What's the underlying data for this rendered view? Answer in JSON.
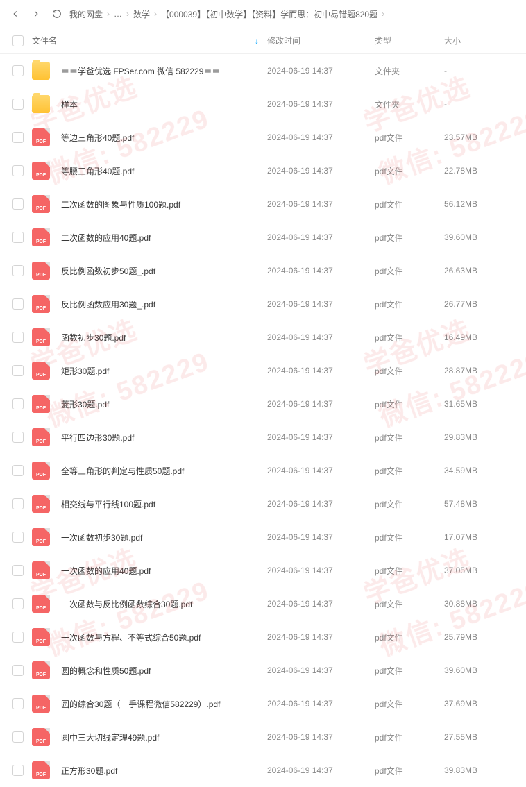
{
  "breadcrumb": {
    "items": [
      "我的网盘",
      "…",
      "数学",
      "【000039】【初中数学】【资料】学而思：初中易错题820题"
    ]
  },
  "columns": {
    "name": "文件名",
    "time": "修改时间",
    "type": "类型",
    "size": "大小"
  },
  "files": [
    {
      "name": "＝＝学爸优选 FPSer.com 微信 582229＝＝",
      "time": "2024-06-19 14:37",
      "type": "文件夹",
      "size": "-",
      "kind": "folder"
    },
    {
      "name": "样本",
      "time": "2024-06-19 14:37",
      "type": "文件夹",
      "size": "-",
      "kind": "folder"
    },
    {
      "name": "等边三角形40题.pdf",
      "time": "2024-06-19 14:37",
      "type": "pdf文件",
      "size": "23.57MB",
      "kind": "pdf"
    },
    {
      "name": "等腰三角形40题.pdf",
      "time": "2024-06-19 14:37",
      "type": "pdf文件",
      "size": "22.78MB",
      "kind": "pdf"
    },
    {
      "name": "二次函数的图象与性质100题.pdf",
      "time": "2024-06-19 14:37",
      "type": "pdf文件",
      "size": "56.12MB",
      "kind": "pdf"
    },
    {
      "name": "二次函数的应用40题.pdf",
      "time": "2024-06-19 14:37",
      "type": "pdf文件",
      "size": "39.60MB",
      "kind": "pdf"
    },
    {
      "name": "反比例函数初步50题_.pdf",
      "time": "2024-06-19 14:37",
      "type": "pdf文件",
      "size": "26.63MB",
      "kind": "pdf"
    },
    {
      "name": "反比例函数应用30题_.pdf",
      "time": "2024-06-19 14:37",
      "type": "pdf文件",
      "size": "26.77MB",
      "kind": "pdf"
    },
    {
      "name": "函数初步30题.pdf",
      "time": "2024-06-19 14:37",
      "type": "pdf文件",
      "size": "16.49MB",
      "kind": "pdf"
    },
    {
      "name": "矩形30题.pdf",
      "time": "2024-06-19 14:37",
      "type": "pdf文件",
      "size": "28.87MB",
      "kind": "pdf"
    },
    {
      "name": "菱形30题.pdf",
      "time": "2024-06-19 14:37",
      "type": "pdf文件",
      "size": "31.65MB",
      "kind": "pdf"
    },
    {
      "name": "平行四边形30题.pdf",
      "time": "2024-06-19 14:37",
      "type": "pdf文件",
      "size": "29.83MB",
      "kind": "pdf"
    },
    {
      "name": "全等三角形的判定与性质50题.pdf",
      "time": "2024-06-19 14:37",
      "type": "pdf文件",
      "size": "34.59MB",
      "kind": "pdf"
    },
    {
      "name": "相交线与平行线100题.pdf",
      "time": "2024-06-19 14:37",
      "type": "pdf文件",
      "size": "57.48MB",
      "kind": "pdf"
    },
    {
      "name": "一次函数初步30题.pdf",
      "time": "2024-06-19 14:37",
      "type": "pdf文件",
      "size": "17.07MB",
      "kind": "pdf"
    },
    {
      "name": "一次函数的应用40题.pdf",
      "time": "2024-06-19 14:37",
      "type": "pdf文件",
      "size": "37.05MB",
      "kind": "pdf"
    },
    {
      "name": "一次函数与反比例函数综合30题.pdf",
      "time": "2024-06-19 14:37",
      "type": "pdf文件",
      "size": "30.88MB",
      "kind": "pdf"
    },
    {
      "name": "一次函数与方程、不等式综合50题.pdf",
      "time": "2024-06-19 14:37",
      "type": "pdf文件",
      "size": "25.79MB",
      "kind": "pdf"
    },
    {
      "name": "圆的概念和性质50题.pdf",
      "time": "2024-06-19 14:37",
      "type": "pdf文件",
      "size": "39.60MB",
      "kind": "pdf"
    },
    {
      "name": "圆的综合30题（一手课程微信582229）.pdf",
      "time": "2024-06-19 14:37",
      "type": "pdf文件",
      "size": "37.69MB",
      "kind": "pdf"
    },
    {
      "name": "圆中三大切线定理49题.pdf",
      "time": "2024-06-19 14:37",
      "type": "pdf文件",
      "size": "27.55MB",
      "kind": "pdf"
    },
    {
      "name": "正方形30题.pdf",
      "time": "2024-06-19 14:37",
      "type": "pdf文件",
      "size": "39.83MB",
      "kind": "pdf"
    }
  ],
  "watermark": {
    "text1": "学爸优选",
    "text2": "微信: 582229",
    "color": "rgba(230,80,80,0.12)"
  },
  "icons": {
    "pdf_label": "PDF"
  }
}
